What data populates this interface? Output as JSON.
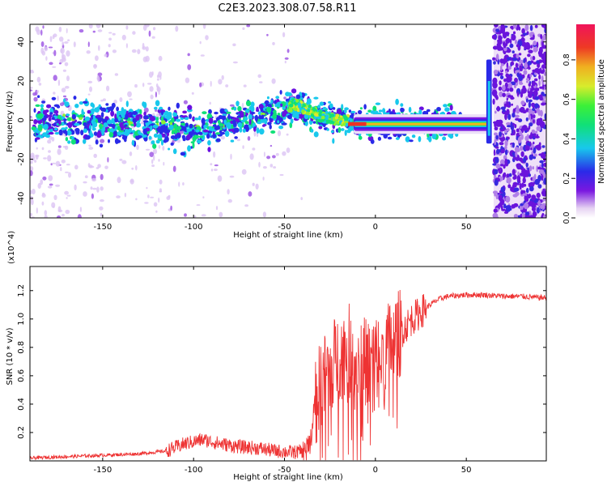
{
  "figure": {
    "title": "C2E3.2023.308.07.58.R11"
  },
  "chart_data": [
    {
      "type": "heatmap",
      "title": "C2E3.2023.308.07.58.R11",
      "xlabel": "Height of straight line (km)",
      "ylabel": "Frequency (Hz)",
      "xlim": [
        -190,
        94
      ],
      "ylim": [
        -50,
        49
      ],
      "xticks": [
        -150,
        -100,
        -50,
        0,
        50
      ],
      "yticks": [
        -40,
        -20,
        0,
        20,
        40
      ],
      "colorbar": {
        "label": "Normalized spectral amplitude",
        "range": [
          0.0,
          0.98
        ],
        "ticks": [
          0.0,
          0.2,
          0.4,
          0.6,
          0.8
        ],
        "colormap": "rainbow (white, purple, blue, cyan, green, yellow, orange, red, magenta)"
      },
      "centerline": {
        "x": [
          -185,
          -165,
          -150,
          -130,
          -110,
          -100,
          -90,
          -75,
          -60,
          -50,
          -45,
          -40,
          -35,
          -30,
          -25,
          -20,
          -15,
          -10,
          -5,
          0,
          10,
          20,
          30,
          40,
          50,
          60,
          63
        ],
        "hz": [
          -1,
          0,
          -2,
          -2,
          -4,
          -6,
          -4,
          -1,
          2,
          5,
          8,
          7,
          4,
          2,
          1,
          0,
          0,
          -1,
          -1,
          -2,
          -2,
          -2,
          -2,
          -2,
          -2,
          -2,
          -2
        ]
      },
      "grid": false
    },
    {
      "type": "line",
      "xlabel": "Height of straight line (km)",
      "ylabel": "SNR (10 * v/v)",
      "y_multiplier": "(x10^4)",
      "xlim": [
        -190,
        94
      ],
      "ylim": [
        0.0,
        1.37
      ],
      "xticks": [
        -150,
        -100,
        -50,
        0,
        50
      ],
      "yticks": [
        0.2,
        0.4,
        0.6,
        0.8,
        1.0,
        1.2
      ],
      "series": [
        {
          "color": "#ee3333",
          "x": [
            -190,
            -170,
            -150,
            -130,
            -115,
            -105,
            -95,
            -85,
            -75,
            -65,
            -55,
            -45,
            -40,
            -36,
            -34,
            -30,
            -25,
            -20,
            -15,
            -10,
            -5,
            0,
            5,
            10,
            15,
            20,
            25,
            30,
            35,
            40,
            50,
            60,
            70,
            80,
            90,
            94
          ],
          "y": [
            0.02,
            0.03,
            0.04,
            0.05,
            0.07,
            0.12,
            0.15,
            0.12,
            0.1,
            0.09,
            0.07,
            0.06,
            0.07,
            0.15,
            0.35,
            0.55,
            0.65,
            0.75,
            0.8,
            0.72,
            0.7,
            0.72,
            0.78,
            0.85,
            0.92,
            1.0,
            1.05,
            1.1,
            1.14,
            1.16,
            1.17,
            1.17,
            1.16,
            1.16,
            1.15,
            1.15
          ]
        }
      ],
      "grid": false
    }
  ]
}
